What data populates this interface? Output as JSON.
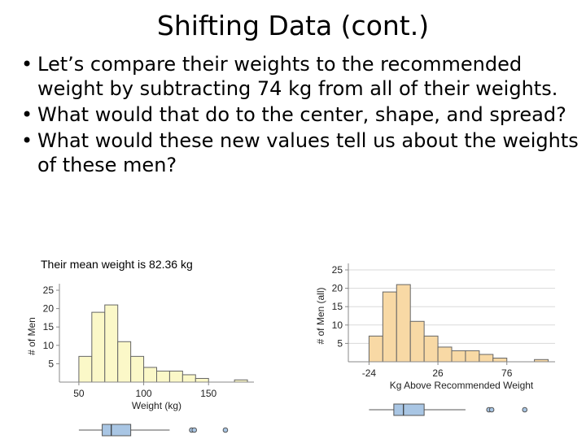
{
  "slide": {
    "title": "Shifting Data (cont.)",
    "bullets": [
      "Let’s compare their weights to the recommended weight by subtracting 74 kg from all of their weights.",
      "What would that do to the center, shape, and spread?",
      "What would these new values tell us about the weights of these men?"
    ],
    "mean_note": "Their mean weight is 82.36 kg",
    "bullet_icon": "bullet-dot"
  },
  "chart_data": [
    {
      "type": "bar",
      "title": "",
      "xlabel": "Weight (kg)",
      "ylabel": "# of Men",
      "xlim": [
        35,
        185
      ],
      "ylim": [
        0,
        25
      ],
      "x_ticks": [
        50,
        100,
        150
      ],
      "y_ticks": [
        5,
        10,
        15,
        20,
        25
      ],
      "bin_width": 10,
      "bin_starts": [
        50,
        60,
        70,
        80,
        90,
        100,
        110,
        120,
        130,
        140,
        150,
        160,
        170
      ],
      "values": [
        7,
        19,
        21,
        11,
        7,
        4,
        3,
        3,
        2,
        1,
        0,
        0,
        0.6
      ],
      "bar_color": "#fbf8c8",
      "grid": false,
      "boxplot": {
        "min": 50,
        "q1": 68,
        "median": 75,
        "q3": 90,
        "max": 120,
        "outliers": [
          137,
          139,
          163
        ]
      },
      "boxplot_color": "#a9c6e4"
    },
    {
      "type": "bar",
      "title": "",
      "xlabel": "Kg Above Recommended Weight",
      "ylabel": "# of Men (all)",
      "xlim": [
        -39,
        111
      ],
      "ylim": [
        0,
        25
      ],
      "x_ticks": [
        -24,
        26,
        76
      ],
      "y_ticks": [
        5,
        10,
        15,
        20,
        25
      ],
      "bin_width": 10,
      "bin_starts": [
        -24,
        -14,
        -4,
        6,
        16,
        26,
        36,
        46,
        56,
        66,
        76,
        86,
        96
      ],
      "values": [
        7,
        19,
        21,
        11,
        7,
        4,
        3,
        3,
        2,
        1,
        0,
        0,
        0.6
      ],
      "bar_color": "#f8d9a5",
      "grid": true,
      "boxplot": {
        "min": -24,
        "q1": -6,
        "median": 1,
        "q3": 16,
        "max": 46,
        "outliers": [
          63,
          65,
          89
        ]
      },
      "boxplot_color": "#a9c6e4"
    }
  ]
}
